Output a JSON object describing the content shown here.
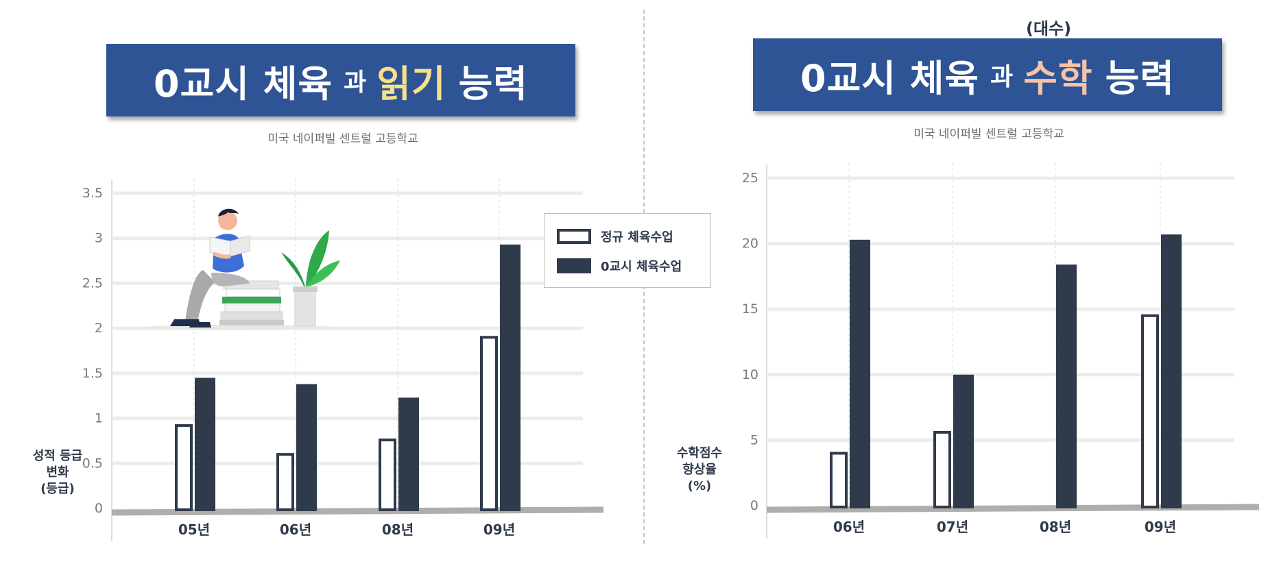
{
  "left": {
    "title": {
      "part1": "0교시 체육",
      "small": "과",
      "highlight": "읽기",
      "part2": "능력"
    },
    "subtitle": "미국 네이퍼빌 센트럴 고등학교",
    "ylabel": "성적 등급\n변화\n(등급)"
  },
  "right": {
    "note": "(대수)",
    "title": {
      "part1": "0교시 체육",
      "small": "과",
      "highlight": "수학",
      "part2": "능력"
    },
    "subtitle": "미국 네이퍼빌 센트럴 고등학교",
    "ylabel": "수학점수\n향상율\n(%)"
  },
  "legend": {
    "regular": "정규 체육수업",
    "zero": "0교시 체육수업"
  },
  "colors": {
    "title_bg": "#2f5496",
    "bar": "#2f3a4b",
    "highlight_reading": "#f7e08a",
    "highlight_math": "#f6c2a8",
    "axis_base": "#b0adad"
  },
  "icons": [
    "person-reading-icon",
    "plant-icon",
    "book-stack-icon"
  ],
  "chart_data": [
    {
      "type": "bar",
      "categories": [
        "05년",
        "06년",
        "08년",
        "09년"
      ],
      "series": [
        {
          "name": "정규 체육수업",
          "values": [
            0.92,
            0.6,
            0.76,
            1.9
          ]
        },
        {
          "name": "0교시 체육수업",
          "values": [
            1.45,
            1.38,
            1.23,
            2.93
          ]
        }
      ],
      "yticks": [
        "0",
        "0.5",
        "1",
        "1.5",
        "2",
        "2.5",
        "3",
        "3.5"
      ],
      "ylim": [
        0,
        3.5
      ],
      "ylabel": "성적 등급\n변화\n(등급)",
      "grid": true,
      "legend": "top-right"
    },
    {
      "type": "bar",
      "categories": [
        "06년",
        "07년",
        "08년",
        "09년"
      ],
      "series": [
        {
          "name": "정규 체육수업",
          "values": [
            4,
            5.6,
            null,
            14.5
          ]
        },
        {
          "name": "0교시 체육수업",
          "values": [
            20.3,
            10,
            18.4,
            20.7
          ]
        }
      ],
      "yticks": [
        "0",
        "5",
        "10",
        "15",
        "20",
        "25"
      ],
      "ylim": [
        0,
        25
      ],
      "ylabel": "수학점수\n향상율\n(%)",
      "grid": true
    }
  ]
}
